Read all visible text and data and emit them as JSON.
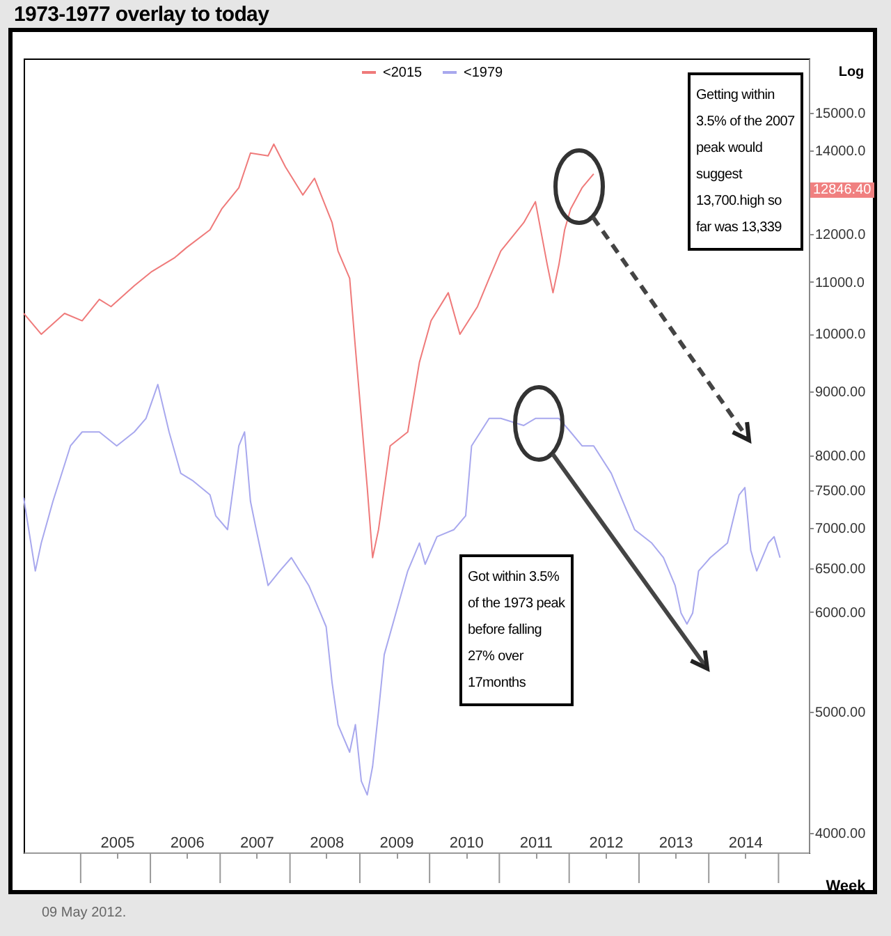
{
  "chart_data": {
    "type": "line",
    "title": "1973-1977 overlay to today",
    "ylabel": "Log",
    "xlabel": "Week",
    "log": true,
    "grid": false,
    "legend": "top",
    "marker": "none",
    "line_style": "solid",
    "xlim": [
      "2004-03-01",
      "2015-06-01"
    ],
    "xticks": [
      {
        "value": "2005-07-02",
        "label": "2005"
      },
      {
        "value": "2006-07-02",
        "label": "2006"
      },
      {
        "value": "2007-07-02",
        "label": "2007"
      },
      {
        "value": "2008-07-02",
        "label": "2008"
      },
      {
        "value": "2009-07-02",
        "label": "2009"
      },
      {
        "value": "2010-07-02",
        "label": "2010"
      },
      {
        "value": "2011-07-02",
        "label": "2011"
      },
      {
        "value": "2012-07-02",
        "label": "2012"
      },
      {
        "value": "2013-07-02",
        "label": "2013"
      },
      {
        "value": "2014-07-02",
        "label": "2014"
      }
    ],
    "ylim": [
      3860,
      16570
    ],
    "yticks": [
      {
        "value": 4000,
        "label": "4000.00"
      },
      {
        "value": 5000,
        "label": "5000.00"
      },
      {
        "value": 6000,
        "label": "6000.00"
      },
      {
        "value": 6500,
        "label": "6500.00"
      },
      {
        "value": 7000,
        "label": "7000.00"
      },
      {
        "value": 7500,
        "label": "7500.00"
      },
      {
        "value": 8000,
        "label": "8000.00"
      },
      {
        "value": 9000,
        "label": "9000.00"
      },
      {
        "value": 10000,
        "label": "10000.0"
      },
      {
        "value": 11000,
        "label": "11000.0"
      },
      {
        "value": 12000,
        "label": "12000.0"
      },
      {
        "value": 14000,
        "label": "14000.0"
      },
      {
        "value": 15000,
        "label": "15000.0"
      }
    ],
    "series": [
      {
        "name": "<2015",
        "color": "#ef7a7a",
        "x": [
          "2004-03",
          "2004-06",
          "2004-10",
          "2005-01",
          "2005-04",
          "2005-06",
          "2005-10",
          "2006-01",
          "2006-05",
          "2006-07",
          "2006-11",
          "2007-01",
          "2007-04",
          "2007-06",
          "2007-09",
          "2007-10",
          "2007-12",
          "2008-03",
          "2008-05",
          "2008-08",
          "2008-09",
          "2008-11",
          "2008-12",
          "2009-01",
          "2009-02",
          "2009-03",
          "2009-04",
          "2009-06",
          "2009-09",
          "2009-11",
          "2010-01",
          "2010-04",
          "2010-06",
          "2010-09",
          "2010-11",
          "2011-01",
          "2011-05",
          "2011-07",
          "2011-09",
          "2011-10",
          "2011-11",
          "2011-12",
          "2012-01",
          "2012-03",
          "2012-05"
        ],
        "values": [
          10380,
          9990,
          10380,
          10240,
          10650,
          10510,
          10920,
          11210,
          11500,
          11710,
          12100,
          12570,
          13070,
          13930,
          13860,
          14160,
          13580,
          12900,
          13300,
          12260,
          11640,
          11070,
          9740,
          8570,
          7540,
          6630,
          6980,
          8140,
          8350,
          9490,
          10240,
          10780,
          9990,
          10510,
          11070,
          11640,
          12260,
          12740,
          11350,
          10780,
          11350,
          12100,
          12570,
          13070,
          13410
        ]
      },
      {
        "name": "<1979",
        "color": "#a8a8ee",
        "x": [
          "2004-03",
          "2004-05",
          "2004-06",
          "2004-08",
          "2004-11",
          "2005-01",
          "2005-04",
          "2005-07",
          "2005-10",
          "2005-12",
          "2006-02",
          "2006-04",
          "2006-06",
          "2006-08",
          "2006-11",
          "2006-12",
          "2007-02",
          "2007-04",
          "2007-05",
          "2007-06",
          "2007-07",
          "2007-09",
          "2007-11",
          "2008-01",
          "2008-04",
          "2008-06",
          "2008-07",
          "2008-08",
          "2008-09",
          "2008-11",
          "2008-12",
          "2009-01",
          "2009-02",
          "2009-03",
          "2009-04",
          "2009-05",
          "2009-07",
          "2009-09",
          "2009-11",
          "2009-12",
          "2010-02",
          "2010-05",
          "2010-07",
          "2010-08",
          "2010-11",
          "2011-01",
          "2011-05",
          "2011-07",
          "2011-10",
          "2011-11",
          "2012-01",
          "2012-03",
          "2012-05",
          "2012-08",
          "2012-10",
          "2012-12",
          "2013-03",
          "2013-05",
          "2013-07",
          "2013-08",
          "2013-09",
          "2013-10",
          "2013-11",
          "2014-01",
          "2014-04",
          "2014-06",
          "2014-07",
          "2014-08",
          "2014-09",
          "2014-11",
          "2014-12",
          "2015-01"
        ],
        "values": [
          7400,
          6470,
          6810,
          7350,
          8140,
          8350,
          8350,
          8140,
          8350,
          8560,
          9110,
          8350,
          7740,
          7640,
          7440,
          7160,
          6980,
          8140,
          8350,
          7350,
          6980,
          6300,
          6470,
          6630,
          6300,
          5990,
          5840,
          5270,
          4880,
          4640,
          4880,
          4400,
          4290,
          4520,
          5000,
          5550,
          5990,
          6470,
          6810,
          6550,
          6890,
          6980,
          7160,
          8140,
          8560,
          8560,
          8450,
          8560,
          8560,
          8560,
          8350,
          8140,
          8140,
          7740,
          7350,
          6980,
          6810,
          6630,
          6300,
          5990,
          5870,
          5990,
          6470,
          6630,
          6810,
          7440,
          7540,
          6720,
          6470,
          6810,
          6890,
          6630
        ]
      }
    ],
    "annotations": [
      "Getting within\n3.5% of the 2007\npeak would\nsuggest\n13,700.high so\nfar was 13,339",
      "Got within 3.5%\nof the 1973 peak\nbefore falling\n27% over\n17months",
      "12846.40",
      "09 May 2012."
    ]
  }
}
